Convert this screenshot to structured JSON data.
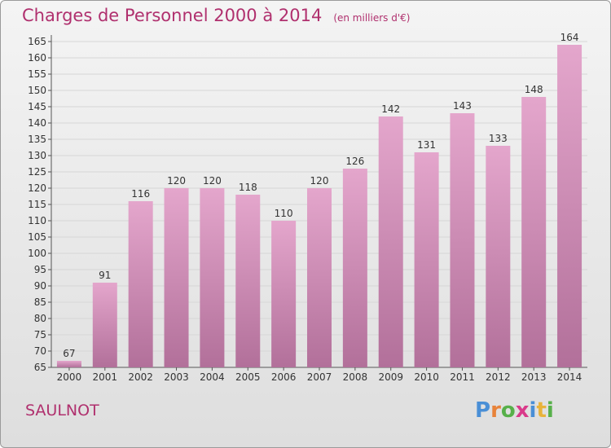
{
  "title": "Charges de Personnel 2000 à 2014",
  "subtitle": "(en milliers d'€)",
  "place_name": "SAULNOT",
  "logo_text": "Proxiti",
  "colors": {
    "title": "#b0306e",
    "bar_top": "#e4a6cc",
    "bar_bottom": "#b2709a",
    "grid": "#d6d6d6"
  },
  "chart_data": {
    "type": "bar",
    "title": "Charges de Personnel 2000 à 2014",
    "subtitle": "(en milliers d'€)",
    "categories": [
      "2000",
      "2001",
      "2002",
      "2003",
      "2004",
      "2005",
      "2006",
      "2007",
      "2008",
      "2009",
      "2010",
      "2011",
      "2012",
      "2013",
      "2014"
    ],
    "values": [
      67,
      91,
      116,
      120,
      120,
      118,
      110,
      120,
      126,
      142,
      131,
      143,
      133,
      148,
      164
    ],
    "data_labels": [
      "67",
      "91",
      "116",
      "120",
      "120",
      "118",
      "110",
      "120",
      "126",
      "142",
      "131",
      "143",
      "133",
      "148",
      "164"
    ],
    "ylim": [
      65,
      165
    ],
    "yticks": [
      65,
      70,
      75,
      80,
      85,
      90,
      95,
      100,
      105,
      110,
      115,
      120,
      125,
      130,
      135,
      140,
      145,
      150,
      155,
      160,
      165
    ],
    "grid": true,
    "legend": "none"
  }
}
